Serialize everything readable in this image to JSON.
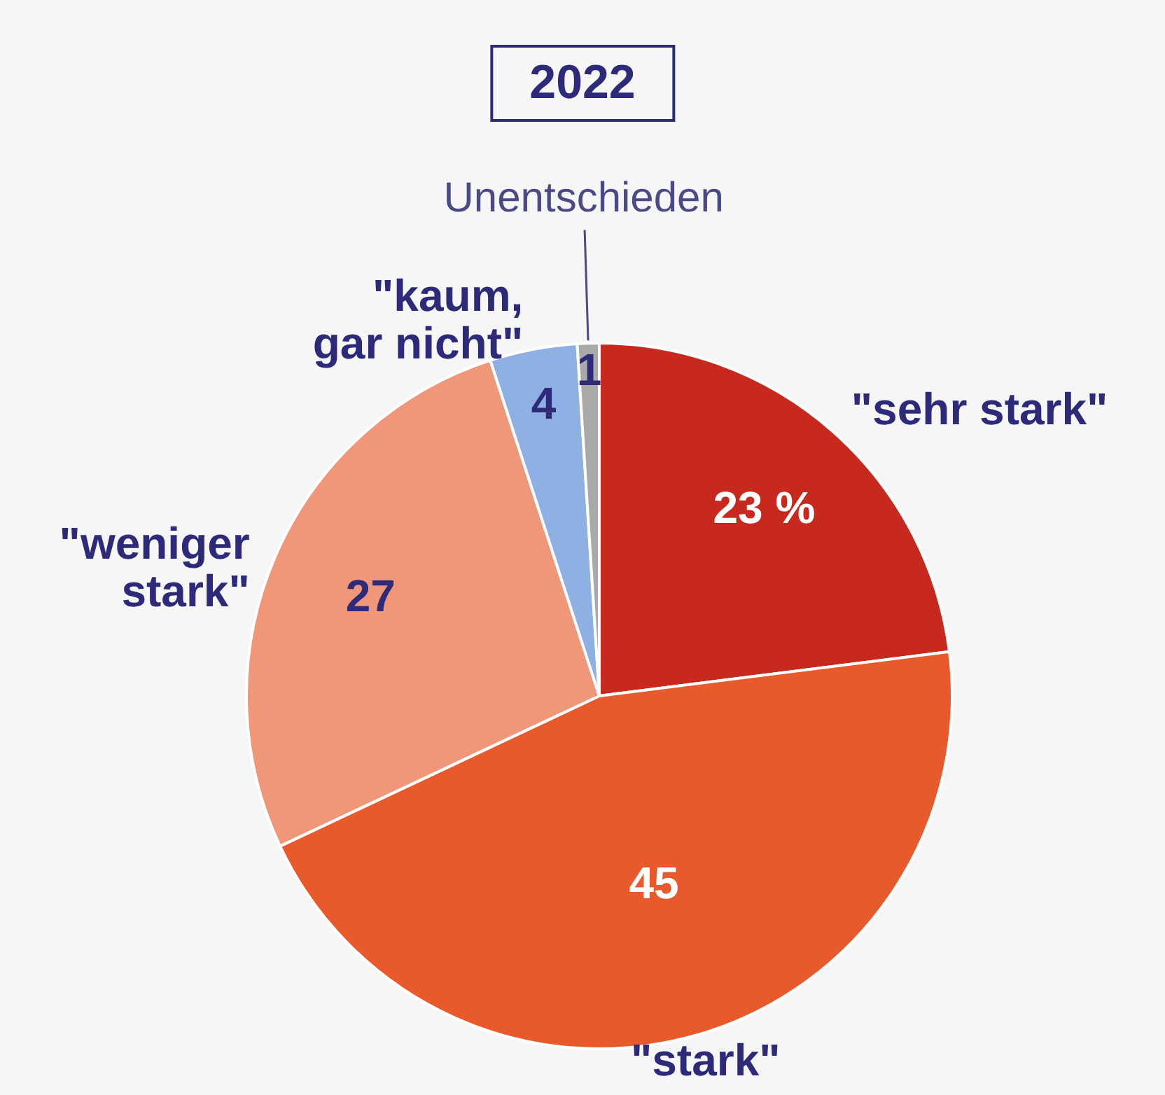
{
  "chart_data": {
    "type": "pie",
    "title": "2022",
    "categories": [
      "\"sehr stark\"",
      "\"stark\"",
      "\"weniger\nstark\"",
      "\"kaum,\ngar nicht\"",
      "Unentschieden"
    ],
    "values": [
      23,
      45,
      27,
      4,
      1
    ],
    "colors": [
      "#c8291e",
      "#e8592b",
      "#f0977a",
      "#8fb0e3",
      "#a9a9a9"
    ],
    "value_labels": [
      "23 %",
      "45",
      "27",
      "4",
      "1"
    ]
  }
}
